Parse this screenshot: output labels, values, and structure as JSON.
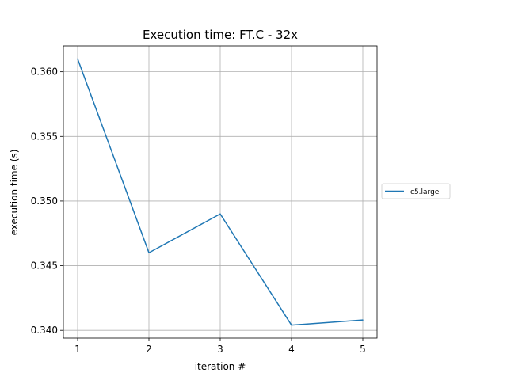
{
  "chart_data": {
    "type": "line",
    "title": "Execution time: FT.C - 32x",
    "xlabel": "iteration #",
    "ylabel": "execution time (s)",
    "x": [
      1,
      2,
      3,
      4,
      5
    ],
    "xticks": [
      "1",
      "2",
      "3",
      "4",
      "5"
    ],
    "yticks": [
      "0.340",
      "0.345",
      "0.350",
      "0.355",
      "0.360"
    ],
    "xlim": [
      0.8,
      5.2
    ],
    "ylim": [
      0.3394,
      0.362
    ],
    "grid": true,
    "legend_position": "center-right, outside plot",
    "series": [
      {
        "name": "c5.large",
        "color": "#1f77b4",
        "values": [
          0.361,
          0.346,
          0.349,
          0.3404,
          0.3408
        ]
      }
    ]
  }
}
